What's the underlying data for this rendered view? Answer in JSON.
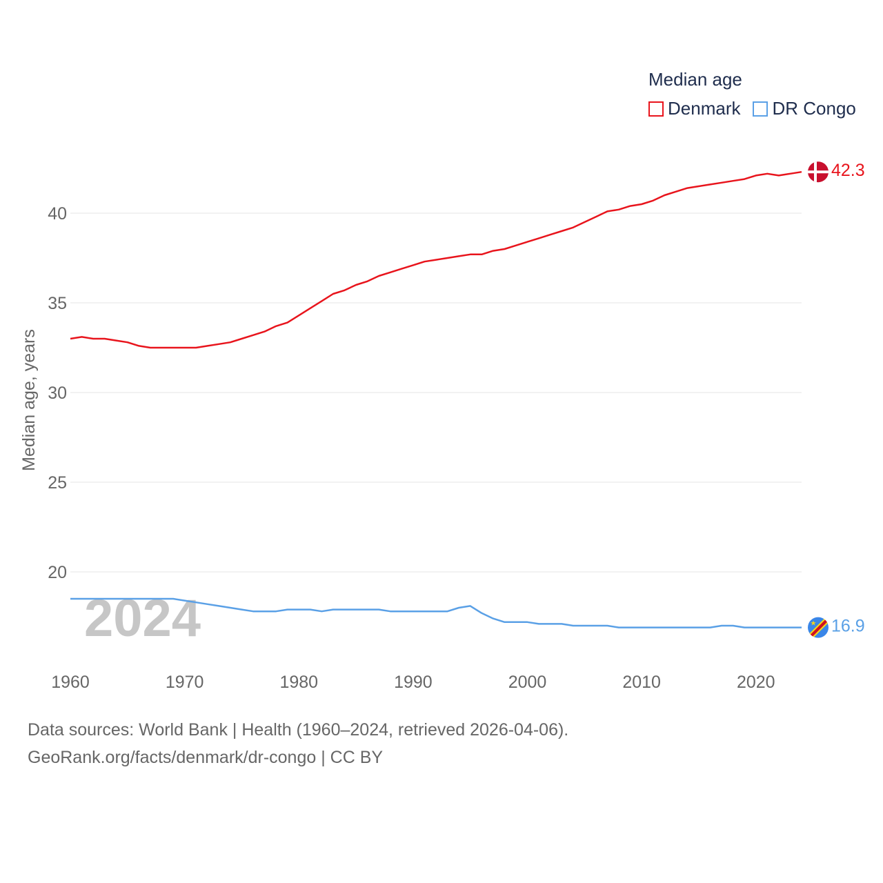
{
  "legend": {
    "title": "Median age"
  },
  "footer": {
    "line1": "Data sources: World Bank | Health (1960–2024, retrieved 2026-04-06).",
    "line2": "GeoRank.org/facts/denmark/dr-congo | CC BY"
  },
  "colors": {
    "denmark": "#e8141c",
    "drcongo": "#5aa0e6",
    "grid": "#e5e5e5",
    "axis_text": "#666666",
    "watermark": "#c0c0c0"
  },
  "chart_data": {
    "type": "line",
    "title": "Median age",
    "ylabel": "Median age, years",
    "xlabel": "",
    "xlim": [
      1960,
      2024
    ],
    "ylim": [
      16,
      44
    ],
    "x_ticks": [
      1960,
      1970,
      1980,
      1990,
      2000,
      2010,
      2020
    ],
    "y_ticks": [
      20,
      25,
      30,
      35,
      40
    ],
    "year_watermark": "2024",
    "x": [
      1960,
      1961,
      1962,
      1963,
      1964,
      1965,
      1966,
      1967,
      1968,
      1969,
      1970,
      1971,
      1972,
      1973,
      1974,
      1975,
      1976,
      1977,
      1978,
      1979,
      1980,
      1981,
      1982,
      1983,
      1984,
      1985,
      1986,
      1987,
      1988,
      1989,
      1990,
      1991,
      1992,
      1993,
      1994,
      1995,
      1996,
      1997,
      1998,
      1999,
      2000,
      2001,
      2002,
      2003,
      2004,
      2005,
      2006,
      2007,
      2008,
      2009,
      2010,
      2011,
      2012,
      2013,
      2014,
      2015,
      2016,
      2017,
      2018,
      2019,
      2020,
      2021,
      2022,
      2023,
      2024
    ],
    "series": [
      {
        "name": "Denmark",
        "color": "#e8141c",
        "end_label": "42.3",
        "values": [
          33.0,
          33.1,
          33.0,
          33.0,
          32.9,
          32.8,
          32.6,
          32.5,
          32.5,
          32.5,
          32.5,
          32.5,
          32.6,
          32.7,
          32.8,
          33.0,
          33.2,
          33.4,
          33.7,
          33.9,
          34.3,
          34.7,
          35.1,
          35.5,
          35.7,
          36.0,
          36.2,
          36.5,
          36.7,
          36.9,
          37.1,
          37.3,
          37.4,
          37.5,
          37.6,
          37.7,
          37.7,
          37.9,
          38.0,
          38.2,
          38.4,
          38.6,
          38.8,
          39.0,
          39.2,
          39.5,
          39.8,
          40.1,
          40.2,
          40.4,
          40.5,
          40.7,
          41.0,
          41.2,
          41.4,
          41.5,
          41.6,
          41.7,
          41.8,
          41.9,
          42.1,
          42.2,
          42.1,
          42.2,
          42.3
        ]
      },
      {
        "name": "DR Congo",
        "color": "#5aa0e6",
        "end_label": "16.9",
        "values": [
          18.5,
          18.5,
          18.5,
          18.5,
          18.5,
          18.5,
          18.5,
          18.5,
          18.5,
          18.5,
          18.4,
          18.3,
          18.2,
          18.1,
          18.0,
          17.9,
          17.8,
          17.8,
          17.8,
          17.9,
          17.9,
          17.9,
          17.8,
          17.9,
          17.9,
          17.9,
          17.9,
          17.9,
          17.8,
          17.8,
          17.8,
          17.8,
          17.8,
          17.8,
          18.0,
          18.1,
          17.7,
          17.4,
          17.2,
          17.2,
          17.2,
          17.1,
          17.1,
          17.1,
          17.0,
          17.0,
          17.0,
          17.0,
          16.9,
          16.9,
          16.9,
          16.9,
          16.9,
          16.9,
          16.9,
          16.9,
          16.9,
          17.0,
          17.0,
          16.9,
          16.9,
          16.9,
          16.9,
          16.9,
          16.9
        ]
      }
    ]
  }
}
